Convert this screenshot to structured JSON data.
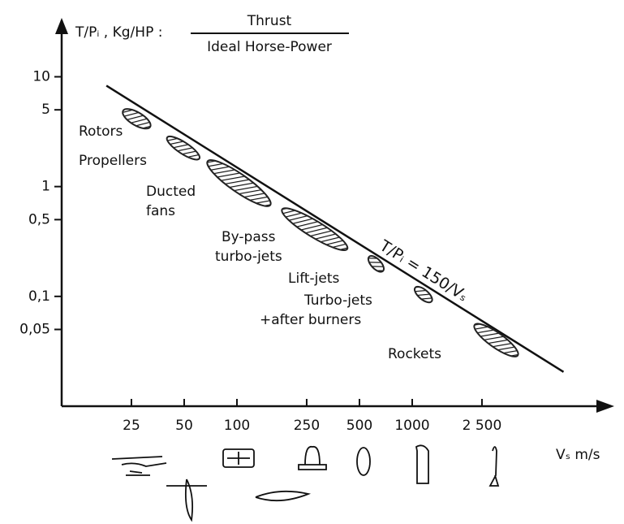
{
  "chart_data": {
    "type": "region",
    "ylabel": "T/Pᵢ , Kg/HP :",
    "ylabel_definition": {
      "numerator": "Thrust",
      "denominator": "Ideal Horse-Power"
    },
    "xlabel": "Vₛ m/s",
    "xlim": [
      10,
      10000
    ],
    "ylim": [
      0.01,
      30
    ],
    "log_x": true,
    "log_y": true,
    "xticks": [
      25,
      50,
      100,
      250,
      500,
      1000,
      {
        "value": 2500,
        "label": "2 500"
      }
    ],
    "yticks": [
      10,
      5,
      1,
      {
        "value": 0.5,
        "label": "0,5"
      },
      {
        "value": 0.1,
        "label": "0,1"
      },
      {
        "value": 0.05,
        "label": "0,05"
      }
    ],
    "line": {
      "label": "T/Pᵢ = 150/Vₛ",
      "x": [
        18,
        7300
      ],
      "y": [
        8.3,
        0.0205
      ],
      "color": "#111111"
    },
    "color": "#222222",
    "regions": [
      {
        "label": [
          "Rotors"
        ],
        "x": [
          22.4,
          32
        ],
        "y": [
          4.9,
          3.5
        ]
      },
      {
        "label": [
          "Propellers"
        ],
        "x": [
          40,
          61
        ],
        "y": [
          2.8,
          1.8
        ]
      },
      {
        "label": [
          "Ducted",
          "fans"
        ],
        "x": [
          68,
          155
        ],
        "y": [
          1.7,
          0.68
        ]
      },
      {
        "label": [
          "By-pass",
          "turbo-jets"
        ],
        "x": [
          181,
          426
        ],
        "y": [
          0.62,
          0.27
        ]
      },
      {
        "label": [
          "Lift-jets"
        ],
        "x": [
          568,
          681
        ],
        "y": [
          0.23,
          0.17
        ]
      },
      {
        "label": [
          "Turbo-jets",
          "+after burners"
        ],
        "x": [
          1040,
          1290
        ],
        "y": [
          0.12,
          0.09
        ]
      },
      {
        "label": [
          "Rockets"
        ],
        "x": [
          2270,
          4000
        ],
        "y": [
          0.055,
          0.029
        ]
      }
    ]
  }
}
